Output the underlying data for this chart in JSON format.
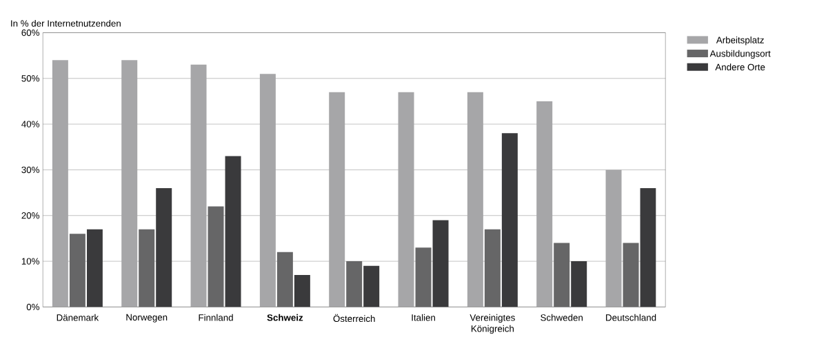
{
  "chart_data": {
    "type": "bar",
    "ylabel": "In % der Internetnutzenden",
    "categories": [
      "Dänemark",
      "Norwegen",
      "Finnland",
      "**Schweiz**",
      "Österreich",
      "Italien",
      "Vereinigtes Königreich",
      "Schweden",
      "Deutschland"
    ],
    "series": [
      {
        "name": "Arbeitsplatz",
        "color": "#a6a6a8",
        "values": [
          54,
          54,
          53,
          51,
          47,
          47,
          47,
          45,
          30
        ]
      },
      {
        "name": "Ausbildungsort",
        "color": "#666667",
        "values": [
          16,
          17,
          22,
          12,
          10,
          13,
          17,
          14,
          14
        ]
      },
      {
        "name": "Andere Orte",
        "color": "#3a3a3c",
        "values": [
          17,
          26,
          33,
          7,
          9,
          19,
          38,
          10,
          26
        ]
      }
    ],
    "ylim": [
      0,
      60
    ],
    "yticks": [
      {
        "value": 0,
        "label": "0%"
      },
      {
        "value": 10,
        "label": "10%"
      },
      {
        "value": 20,
        "label": "20%"
      },
      {
        "value": 30,
        "label": "30%"
      },
      {
        "value": 40,
        "label": "40%"
      },
      {
        "value": 50,
        "label": "50%"
      },
      {
        "value": 60,
        "label": "60%"
      }
    ],
    "grid": "y",
    "legend": "top right"
  }
}
